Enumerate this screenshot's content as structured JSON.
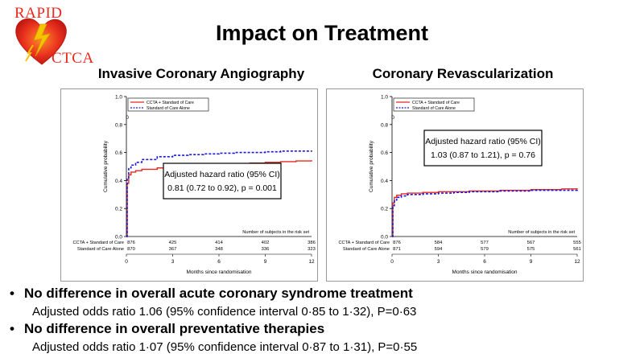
{
  "logo": {
    "top_text": "RAPID",
    "bottom_text": "CTCA",
    "icon": "heart-lightning-icon"
  },
  "title": "Impact on Treatment",
  "panels": [
    {
      "heading": "Invasive Coronary Angiography"
    },
    {
      "heading": "Coronary Revascularization"
    }
  ],
  "bullets": [
    {
      "text": "No difference in overall acute coronary syndrome treatment",
      "sub": "Adjusted odds ratio 1.06 (95% confidence interval 0·85 to 1·32), P=0·63"
    },
    {
      "text": "No difference in overall preventative therapies",
      "sub": "Adjusted  odds ratio 1·07 (95% confidence interval 0·87 to 1·31), P=0·55"
    }
  ],
  "colors": {
    "series1": "#e8281e",
    "series2": "#1a1adc"
  },
  "chart_data": [
    {
      "type": "line",
      "xlabel": "Months since randomisation",
      "ylabel": "Cumulative probability",
      "xlim": [
        0,
        12
      ],
      "ylim": [
        0,
        1.0
      ],
      "xticks": [
        0,
        3,
        6,
        9,
        12
      ],
      "yticks": [
        0.0,
        0.2,
        0.4,
        0.6,
        0.8,
        1.0
      ],
      "ytick_labels": [
        "0.0",
        "0.2",
        "0.4",
        "0.6",
        "0.8",
        "1.0"
      ],
      "legend_position": "top-left",
      "series": [
        {
          "name": "CCTA + Standard of Care",
          "style": "solid",
          "x": [
            0,
            0.05,
            0.15,
            0.3,
            0.6,
            1,
            2,
            3,
            4,
            5,
            6,
            7,
            8,
            9,
            10,
            11,
            12
          ],
          "y": [
            0,
            0.38,
            0.44,
            0.46,
            0.47,
            0.48,
            0.49,
            0.5,
            0.505,
            0.51,
            0.515,
            0.52,
            0.525,
            0.53,
            0.535,
            0.54,
            0.545
          ]
        },
        {
          "name": "Standard of Care Alone",
          "style": "dashed",
          "x": [
            0,
            0.05,
            0.15,
            0.3,
            0.6,
            1,
            2,
            3,
            4,
            5,
            6,
            7,
            8,
            9,
            10,
            11,
            12
          ],
          "y": [
            0,
            0.42,
            0.49,
            0.51,
            0.53,
            0.55,
            0.57,
            0.58,
            0.585,
            0.59,
            0.595,
            0.6,
            0.6,
            0.605,
            0.61,
            0.61,
            0.615
          ]
        }
      ],
      "annotation": {
        "line1": "Adjusted hazard ratio (95% CI)",
        "line2": "0.81 (0.72 to 0.92),  p = 0.001"
      },
      "risk_table": {
        "title": "Number of subjects in the risk set",
        "rows": [
          {
            "label": "CCTA + Standard of Care",
            "values": [
              "876",
              "425",
              "414",
              "402",
              "386"
            ]
          },
          {
            "label": "Standard of Care Alone",
            "values": [
              "870",
              "367",
              "348",
              "336",
              "323"
            ]
          }
        ]
      }
    },
    {
      "type": "line",
      "xlabel": "Months since randomisation",
      "ylabel": "Cumulative probability",
      "xlim": [
        0,
        12
      ],
      "ylim": [
        0,
        1.0
      ],
      "xticks": [
        0,
        3,
        6,
        9,
        12
      ],
      "yticks": [
        0.0,
        0.2,
        0.4,
        0.6,
        0.8,
        1.0
      ],
      "ytick_labels": [
        "0.0",
        "0.2",
        "0.4",
        "0.6",
        "0.8",
        "1.0"
      ],
      "legend_position": "top-left",
      "series": [
        {
          "name": "CCTA + Standard of Care",
          "style": "solid",
          "x": [
            0,
            0.05,
            0.15,
            0.3,
            0.6,
            1,
            2,
            3,
            4,
            5,
            6,
            7,
            8,
            9,
            10,
            11,
            12
          ],
          "y": [
            0,
            0.24,
            0.28,
            0.295,
            0.305,
            0.31,
            0.315,
            0.32,
            0.32,
            0.325,
            0.325,
            0.33,
            0.33,
            0.335,
            0.335,
            0.34,
            0.345
          ]
        },
        {
          "name": "Standard of Care Alone",
          "style": "dashed",
          "x": [
            0,
            0.05,
            0.15,
            0.3,
            0.6,
            1,
            2,
            3,
            4,
            5,
            6,
            7,
            8,
            9,
            10,
            11,
            12
          ],
          "y": [
            0,
            0.22,
            0.26,
            0.28,
            0.29,
            0.3,
            0.305,
            0.31,
            0.315,
            0.32,
            0.32,
            0.325,
            0.325,
            0.33,
            0.33,
            0.33,
            0.335
          ]
        }
      ],
      "annotation": {
        "line1": "Adjusted hazard ratio (95% CI)",
        "line2": "1.03 (0.87 to 1.21),  p = 0.76"
      },
      "risk_table": {
        "title": "Number of subjects in the risk set",
        "rows": [
          {
            "label": "CCTA + Standard of Care",
            "values": [
              "876",
              "584",
              "577",
              "567",
              "555"
            ]
          },
          {
            "label": "Standard of Care Alone",
            "values": [
              "871",
              "594",
              "579",
              "575",
              "561"
            ]
          }
        ]
      }
    }
  ]
}
